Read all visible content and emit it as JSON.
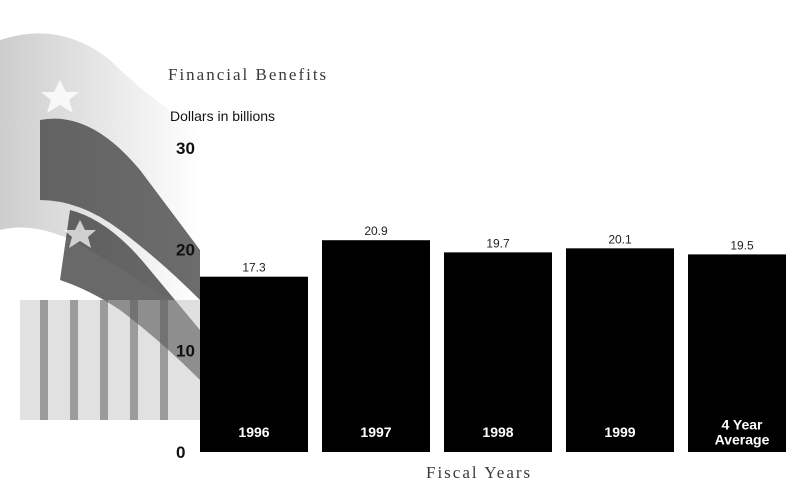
{
  "chart_data": {
    "type": "bar",
    "title": "Financial Benefits",
    "ylabel": "Dollars in billions",
    "xlabel": "Fiscal Years",
    "categories": [
      "1996",
      "1997",
      "1998",
      "1999",
      "4 Year Average"
    ],
    "category_lines": [
      [
        "1996"
      ],
      [
        "1997"
      ],
      [
        "1998"
      ],
      [
        "1999"
      ],
      [
        "4 Year",
        "Average"
      ]
    ],
    "values": [
      17.3,
      20.9,
      19.7,
      20.1,
      19.5
    ],
    "value_labels": [
      "17.3",
      "20.9",
      "19.7",
      "20.1",
      "19.5"
    ],
    "yticks": [
      "0",
      "10",
      "20",
      "30"
    ],
    "ylim": [
      0,
      30
    ],
    "grid": false,
    "colors": {
      "bar": "#000000",
      "bar_label": "#ffffff",
      "background": "#ffffff"
    }
  }
}
